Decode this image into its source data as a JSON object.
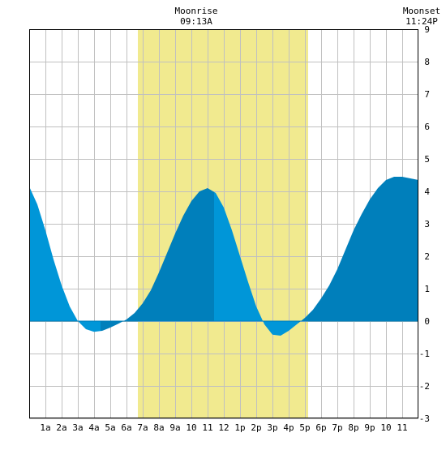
{
  "events": {
    "moonrise": {
      "label": "Moonrise",
      "time": "09:13A"
    },
    "moonset": {
      "label": "Moonset",
      "time": "11:24P"
    }
  },
  "colors": {
    "background": "#ffffff",
    "grid": "#c0c0c0",
    "highlight": "#f1ea8f",
    "tide_light": "#0096d8",
    "tide_dark": "#007fbb",
    "axis": "#000000"
  },
  "chart_data": {
    "type": "area",
    "title": "",
    "xlabel": "",
    "ylabel": "",
    "xlim": [
      0,
      24
    ],
    "ylim": [
      -3,
      9
    ],
    "grid": true,
    "x_tick_labels": [
      "1a",
      "2a",
      "3a",
      "4a",
      "5a",
      "6a",
      "7a",
      "8a",
      "9a",
      "10",
      "11",
      "12",
      "1p",
      "2p",
      "3p",
      "4p",
      "5p",
      "6p",
      "7p",
      "8p",
      "9p",
      "10",
      "11"
    ],
    "y_tick_labels": [
      "9",
      "8",
      "7",
      "6",
      "5",
      "4",
      "3",
      "2",
      "1",
      "0",
      "-1",
      "-2",
      "-3"
    ],
    "y_tick_values": [
      9,
      8,
      7,
      6,
      5,
      4,
      3,
      2,
      1,
      0,
      -1,
      -2,
      -3
    ],
    "highlight_range_hours": [
      6.7,
      17.2
    ],
    "series": [
      {
        "x": [
          0,
          0.5,
          1,
          1.5,
          2,
          2.5,
          3,
          3.5,
          4,
          4.5,
          5,
          5.5,
          6,
          6.5,
          7,
          7.5,
          8,
          8.5,
          9,
          9.5,
          10,
          10.5,
          11,
          11.5,
          12,
          12.5,
          13,
          13.5,
          14,
          14.5,
          15,
          15.5,
          16,
          16.5,
          17,
          17.5,
          18,
          18.5,
          19,
          19.5,
          20,
          20.5,
          21,
          21.5,
          22,
          22.5,
          23,
          23.5,
          24
        ],
        "values": [
          4.15,
          3.6,
          2.8,
          1.9,
          1.1,
          0.45,
          0.0,
          -0.25,
          -0.33,
          -0.3,
          -0.2,
          -0.08,
          0.05,
          0.25,
          0.55,
          0.95,
          1.5,
          2.1,
          2.7,
          3.25,
          3.7,
          4.0,
          4.1,
          3.95,
          3.5,
          2.8,
          2.0,
          1.2,
          0.45,
          -0.1,
          -0.42,
          -0.45,
          -0.3,
          -0.1,
          0.1,
          0.35,
          0.7,
          1.1,
          1.6,
          2.2,
          2.8,
          3.3,
          3.75,
          4.1,
          4.35,
          4.45,
          4.45,
          4.4,
          4.35
        ]
      }
    ],
    "extrema_hours": [
      4.4,
      11.4,
      16.6
    ]
  }
}
